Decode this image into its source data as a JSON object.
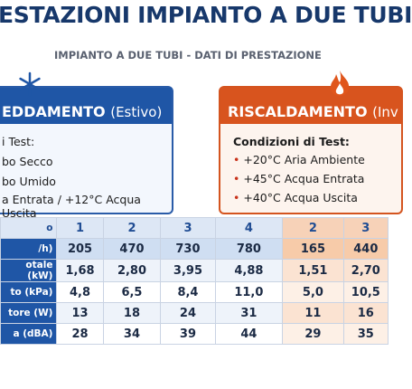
{
  "header": {
    "title": "ESTAZIONI IMPIANTO A DUE TUBI",
    "subtitle": "IMPIANTO A DUE TUBI - DATI DI PRESTAZIONE"
  },
  "cooling": {
    "title": "EDDAMENTO",
    "season": "(Estivo)",
    "lines": [
      "i Test:",
      "bo Secco",
      "bo Umido",
      "a Entrata / +12°C Acqua Uscita"
    ]
  },
  "heating": {
    "title": "RISCALDAMENTO",
    "season": "(Inv",
    "conditions_title": "Condizioni di Test:",
    "lines": [
      "+20°C Aria Ambiente",
      "+45°C Acqua Entrata",
      "+40°C Acqua Uscita"
    ]
  },
  "table": {
    "rows": [
      [
        "o",
        "1",
        "2",
        "3",
        "4",
        "2",
        "3"
      ],
      [
        "/h)",
        "205",
        "470",
        "730",
        "780",
        "165",
        "440"
      ],
      [
        "otale (kW)",
        "1,68",
        "2,80",
        "3,95",
        "4,88",
        "1,51",
        "2,70"
      ],
      [
        "to (kPa)",
        "4,8",
        "6,5",
        "8,4",
        "11,0",
        "5,0",
        "10,5"
      ],
      [
        "tore (W)",
        "13",
        "18",
        "24",
        "31",
        "11",
        "16"
      ],
      [
        "a (dBA)",
        "28",
        "34",
        "39",
        "44",
        "29",
        "35"
      ]
    ]
  }
}
